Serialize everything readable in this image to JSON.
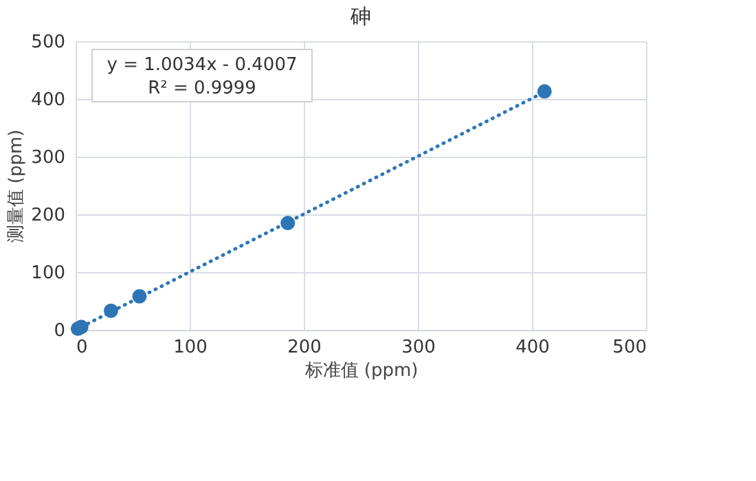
{
  "chart_data": {
    "type": "scatter",
    "title": "砷",
    "xlabel": "标准值 (ppm)",
    "ylabel": "测量值 (ppm)",
    "series": [
      {
        "color": "#2e75b6",
        "marker": "circle",
        "x": [
          2,
          5,
          31,
          56,
          186,
          411
        ],
        "values": [
          2,
          5,
          33,
          58,
          185,
          413
        ]
      },
      {
        "type": "line",
        "color": "#2e75b6",
        "line_style": "dotted",
        "marker": "none",
        "x": [
          0,
          411
        ],
        "values": [
          0,
          412
        ]
      }
    ],
    "annotations": [
      "y = 1.0034x - 0.4007",
      "R² = 0.9999"
    ],
    "xlim": [
      0,
      500
    ],
    "xticks": [
      0,
      100,
      200,
      300,
      400,
      500
    ],
    "ylim": [
      0,
      500
    ],
    "yticks": [
      0,
      100,
      200,
      300,
      400,
      500
    ],
    "grid": true
  }
}
